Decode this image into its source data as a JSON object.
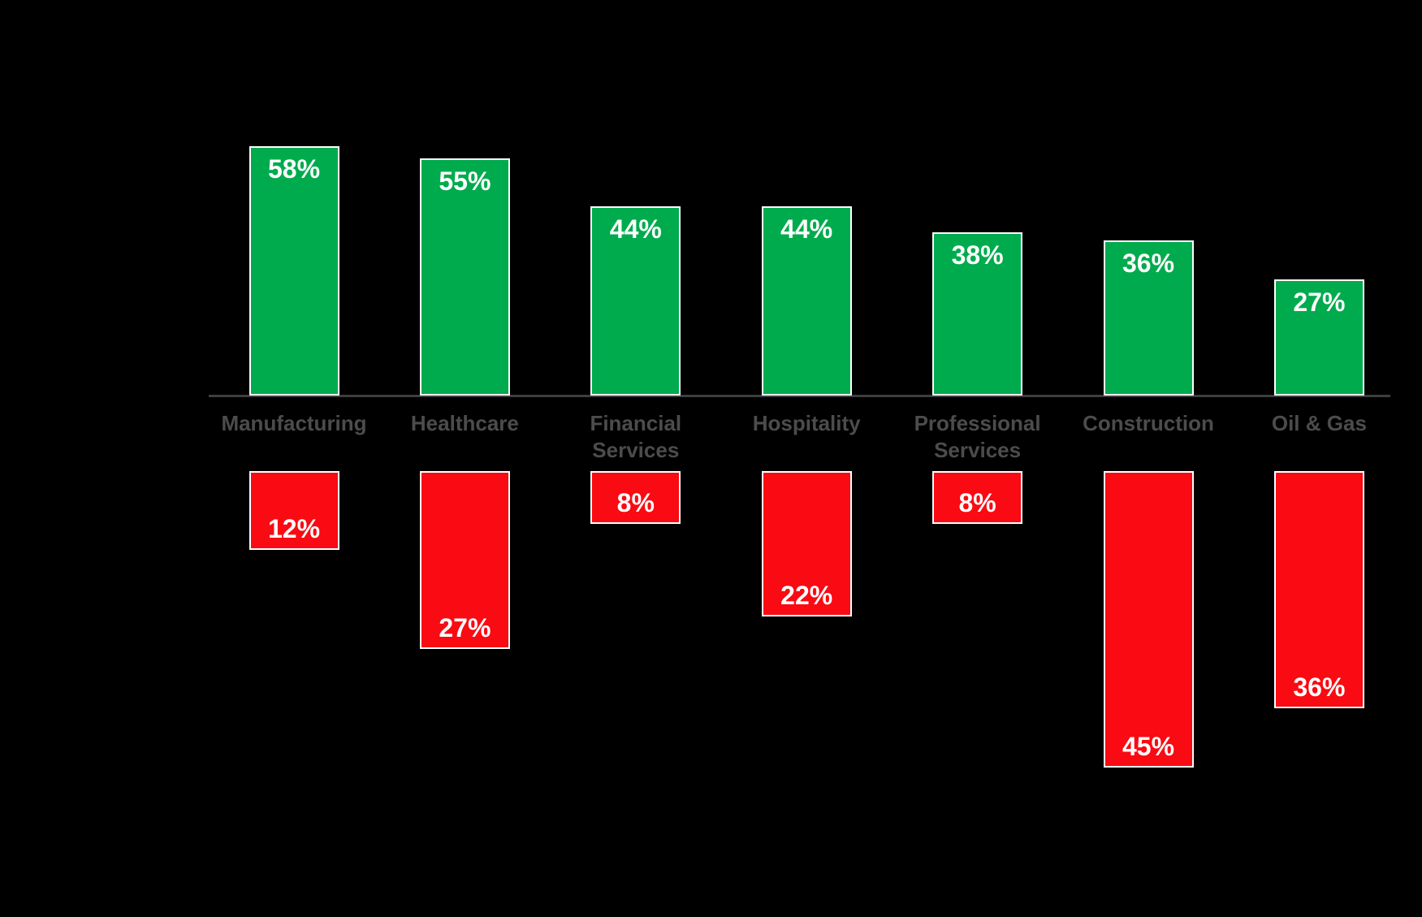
{
  "background_color": "#000000",
  "chart_data": {
    "type": "bar",
    "categories": [
      "Manufacturing",
      "Healthcare",
      "Financial Services",
      "Hospitality",
      "Professional Services",
      "Construction",
      "Oil & Gas"
    ],
    "series": [
      {
        "name": "above_axis_green",
        "color": "#00AB4D",
        "values": [
          58,
          55,
          44,
          44,
          38,
          36,
          27
        ]
      },
      {
        "name": "below_axis_red",
        "color": "#FA0A12",
        "values": [
          12,
          27,
          8,
          22,
          8,
          45,
          36
        ]
      }
    ],
    "value_suffix": "%",
    "value_label_color": "#FFFFFF",
    "bar_border_color": "#FFFFFF",
    "axis_line_color": "#3E3E40",
    "category_label_color": "#4C4C4E",
    "legend": "none",
    "grid": "off",
    "data_labels": {
      "above_axis_green": [
        "58%",
        "55%",
        "44%",
        "44%",
        "38%",
        "36%",
        "27%"
      ],
      "below_axis_red": [
        "12%",
        "27%",
        "8%",
        "22%",
        "8%",
        "45%",
        "36%"
      ]
    }
  }
}
